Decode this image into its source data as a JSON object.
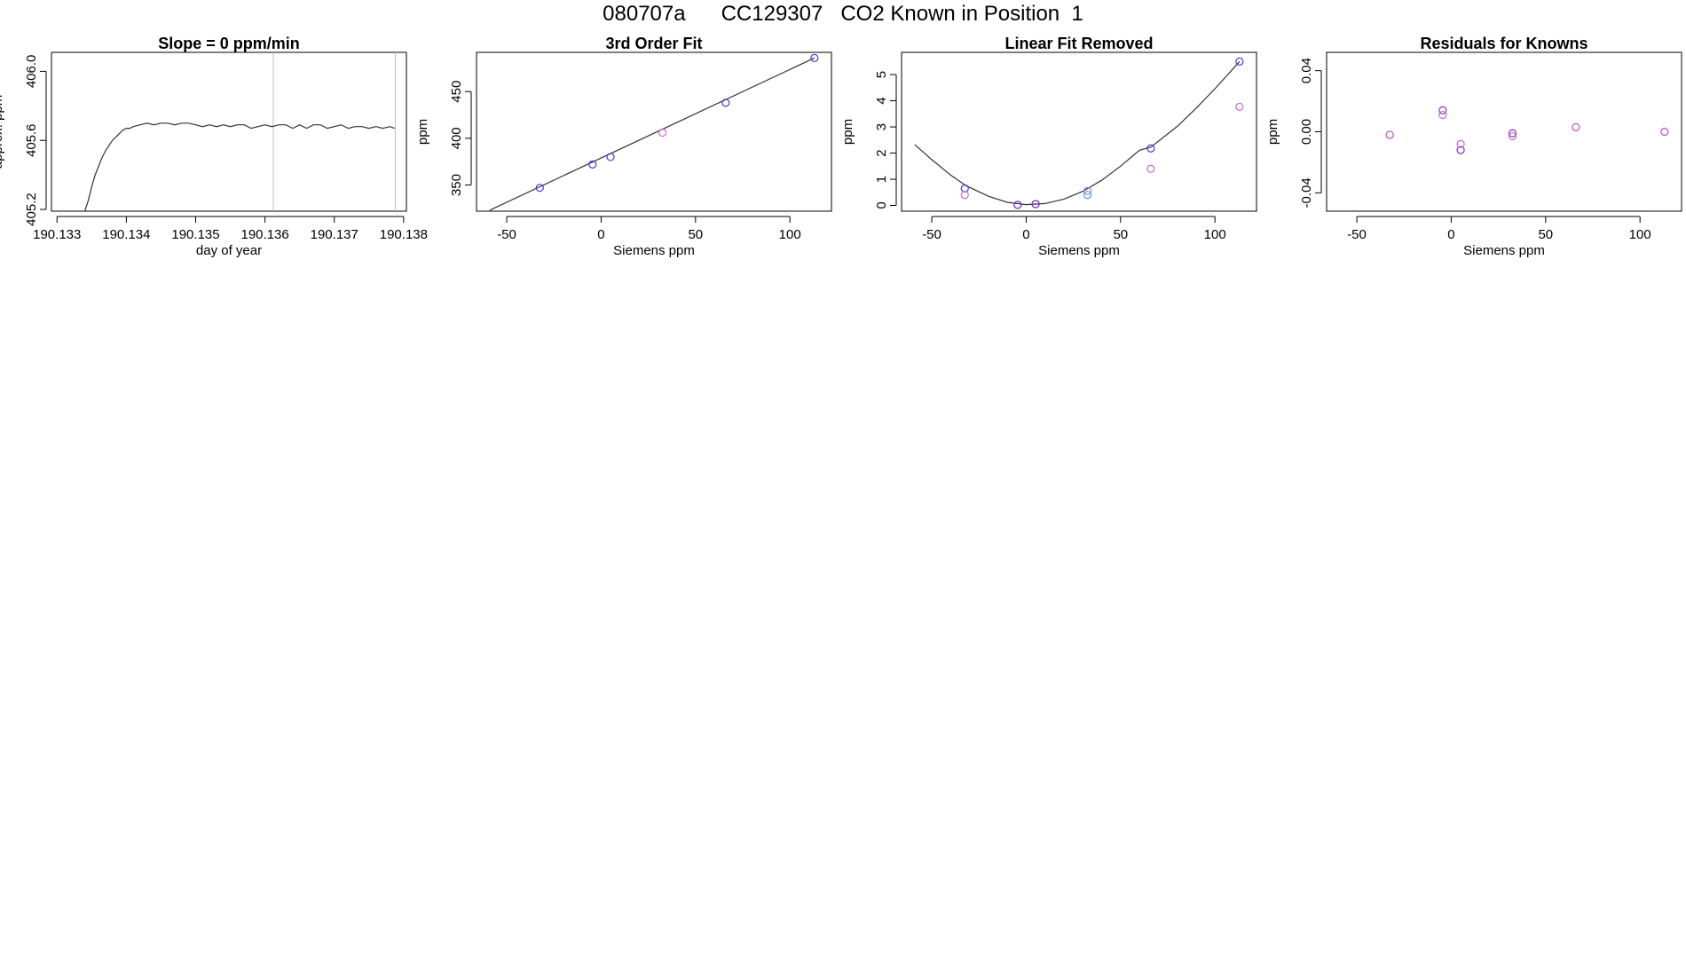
{
  "figure": {
    "title": "080707a      CC129307   CO2 Known in Position  1",
    "colors": {
      "axis": "#000000",
      "line": "#333333",
      "vline": "#bdbdbd",
      "blue": "#3b3bd6",
      "magenta": "#cc66cc",
      "cyan": "#33aadd",
      "purple": "#7a2fc8"
    }
  },
  "chart_data": [
    {
      "type": "line",
      "title": "Slope =  0  ppm/min",
      "xlabel": "day of year",
      "ylabel": "approx. ppm",
      "xlim": [
        190.13292,
        190.13804
      ],
      "ylim": [
        405.19,
        406.11
      ],
      "xticks": [
        190.133,
        190.134,
        190.135,
        190.136,
        190.137,
        190.138
      ],
      "xtick_labels": [
        "190.133",
        "190.134",
        "190.135",
        "190.136",
        "190.137",
        "190.138"
      ],
      "yticks": [
        405.2,
        405.6,
        406.0
      ],
      "ytick_labels": [
        "405.2",
        "405.6",
        "406.0"
      ],
      "vlines": [
        190.13612,
        190.13788
      ],
      "series": [
        {
          "x": [
            190.1334,
            190.13345,
            190.1335,
            190.13355,
            190.1336,
            190.13365,
            190.1337,
            190.13375,
            190.1338,
            190.13385,
            190.1339,
            190.13395,
            190.134,
            190.13405,
            190.1341,
            190.1342,
            190.1343,
            190.1344,
            190.1345,
            190.1346,
            190.1347,
            190.1348,
            190.1349,
            190.135,
            190.1351,
            190.1352,
            190.1353,
            190.1354,
            190.1355,
            190.1356,
            190.1357,
            190.1358,
            190.1359,
            190.136,
            190.1361,
            190.1362,
            190.1363,
            190.1364,
            190.1365,
            190.1366,
            190.1367,
            190.1368,
            190.1369,
            190.137,
            190.1371,
            190.1372,
            190.1373,
            190.1374,
            190.1375,
            190.1376,
            190.1377,
            190.1378,
            190.13787
          ],
          "y": [
            405.19,
            405.25,
            405.33,
            405.4,
            405.45,
            405.5,
            405.54,
            405.57,
            405.6,
            405.62,
            405.64,
            405.66,
            405.67,
            405.67,
            405.68,
            405.69,
            405.7,
            405.69,
            405.7,
            405.7,
            405.69,
            405.7,
            405.7,
            405.69,
            405.68,
            405.69,
            405.68,
            405.69,
            405.68,
            405.69,
            405.69,
            405.67,
            405.68,
            405.69,
            405.68,
            405.69,
            405.69,
            405.67,
            405.69,
            405.67,
            405.69,
            405.69,
            405.67,
            405.68,
            405.69,
            405.67,
            405.68,
            405.68,
            405.67,
            405.68,
            405.67,
            405.68,
            405.67
          ]
        }
      ]
    },
    {
      "type": "scatter",
      "title": "3rd Order Fit",
      "xlabel": "Siemens ppm",
      "ylabel": "ppm",
      "xlim": [
        -66,
        122
      ],
      "ylim": [
        322,
        492
      ],
      "xticks": [
        -50,
        0,
        50,
        100
      ],
      "xtick_labels": [
        "-50",
        "0",
        "50",
        "100"
      ],
      "yticks": [
        350,
        400,
        450
      ],
      "ytick_labels": [
        "350",
        "400",
        "450"
      ],
      "fit_line": {
        "x": [
          -59,
          113
        ],
        "y": [
          323,
          486
        ]
      },
      "series": [
        {
          "name": "",
          "color": "blue",
          "x": [
            -32.5,
            -4.5,
            5,
            66,
            113
          ],
          "y": [
            347,
            372,
            380,
            438,
            486
          ]
        },
        {
          "name": "",
          "color": "magenta",
          "x": [
            32.5
          ],
          "y": [
            406
          ]
        }
      ]
    },
    {
      "type": "scatter",
      "title": "Linear Fit Removed",
      "xlabel": "Siemens ppm",
      "ylabel": "ppm",
      "xlim": [
        -66,
        122
      ],
      "ylim": [
        -0.22,
        5.85
      ],
      "xticks": [
        -50,
        0,
        50,
        100
      ],
      "xtick_labels": [
        "-50",
        "0",
        "50",
        "100"
      ],
      "yticks": [
        0,
        1,
        2,
        3,
        4,
        5
      ],
      "ytick_labels": [
        "0",
        "1",
        "2",
        "3",
        "4",
        "5"
      ],
      "curve": {
        "x": [
          -59,
          -50,
          -40,
          -32,
          -20,
          -10,
          0,
          10,
          20,
          30,
          40,
          50,
          60,
          66,
          80,
          90,
          100,
          113
        ],
        "y": [
          2.32,
          1.75,
          1.16,
          0.76,
          0.35,
          0.12,
          0.03,
          0.07,
          0.24,
          0.54,
          0.96,
          1.5,
          2.11,
          2.23,
          3.02,
          3.71,
          4.46,
          5.5
        ]
      },
      "series": [
        {
          "name": "",
          "color": "blue",
          "x": [
            -32.5,
            -4.5,
            5,
            66,
            113
          ],
          "y": [
            0.65,
            0.02,
            0.05,
            2.18,
            5.5
          ]
        },
        {
          "name": "",
          "color": "magenta",
          "x": [
            -32.5,
            32.5,
            66,
            113
          ],
          "y": [
            0.4,
            0.55,
            1.4,
            3.77
          ]
        },
        {
          "name": "",
          "color": "cyan",
          "x": [
            32.5
          ],
          "y": [
            0.4
          ]
        },
        {
          "name": "",
          "color": "purple",
          "x": [
            -4.5,
            5
          ],
          "y": [
            0.02,
            0.05
          ]
        }
      ]
    },
    {
      "type": "scatter",
      "title": "Residuals for Knowns",
      "xlabel": "Siemens ppm",
      "ylabel": "ppm",
      "xlim": [
        -66,
        122
      ],
      "ylim": [
        -0.052,
        0.052
      ],
      "xticks": [
        -50,
        0,
        50,
        100
      ],
      "xtick_labels": [
        "-50",
        "0",
        "50",
        "100"
      ],
      "yticks": [
        -0.04,
        0.0,
        0.04
      ],
      "ytick_labels": [
        "-0.04",
        "0.00",
        "0.04"
      ],
      "series": [
        {
          "name": "",
          "color": "purple",
          "x": [
            -32.5,
            -4.5,
            5,
            32.5,
            66,
            113
          ],
          "y": [
            -0.002,
            0.014,
            -0.012,
            -0.001,
            0.003,
            0.0
          ]
        },
        {
          "name": "",
          "color": "magenta",
          "x": [
            -32.5,
            -4.5,
            5,
            32.5,
            66,
            113
          ],
          "y": [
            -0.002,
            0.011,
            -0.008,
            -0.003,
            0.003,
            0.0
          ]
        }
      ]
    }
  ]
}
